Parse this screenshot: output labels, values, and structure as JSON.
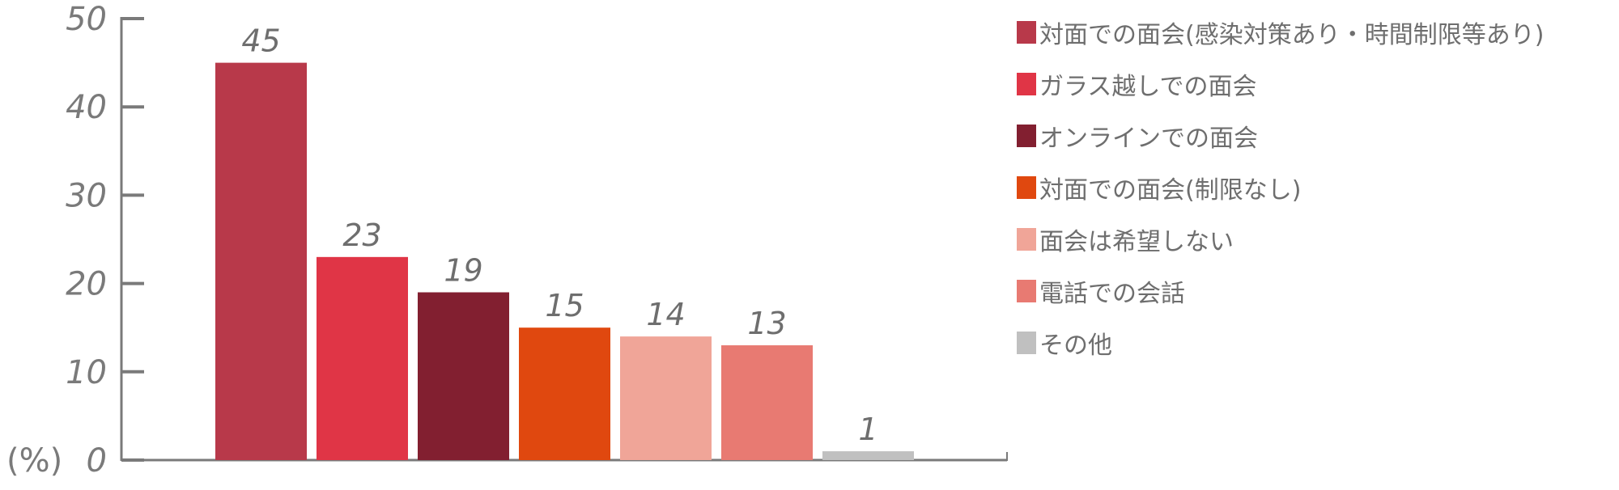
{
  "chart_data": {
    "type": "bar",
    "title": "",
    "xlabel": "",
    "ylabel": "(%)",
    "ylim": [
      0,
      50
    ],
    "yticks": [
      0,
      10,
      20,
      30,
      40,
      50
    ],
    "grid": false,
    "legend_position": "right",
    "categories": [
      "対面での面会(感染対策あり・時間制限等あり)",
      "ガラス越しでの面会",
      "オンラインでの面会",
      "対面での面会(制限なし)",
      "面会は希望しない",
      "電話での会話",
      "その他"
    ],
    "values": [
      45,
      23,
      19,
      15,
      14,
      13,
      1
    ],
    "colors": [
      "#b8394a",
      "#e03546",
      "#821f30",
      "#e0480f",
      "#f0a598",
      "#e87a72",
      "#c0c0c0"
    ]
  }
}
